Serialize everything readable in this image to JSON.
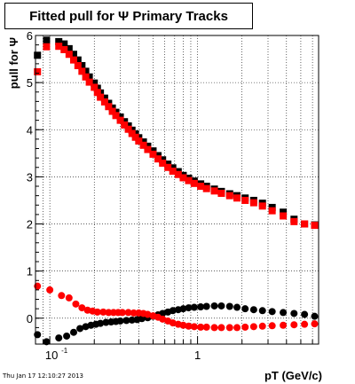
{
  "header": {
    "title": "Fitted pull for Ψ  Primary Tracks"
  },
  "footer": {
    "timestamp": "Thu Jan 17 12:10:27 2013"
  },
  "chart_data": {
    "type": "scatter",
    "title": "Fitted pull for Ψ  Primary Tracks",
    "xlabel": "pT (GeV/c)",
    "ylabel": "pull for Ψ",
    "xscale": "log",
    "xlim": [
      0.08,
      6.6
    ],
    "ylim": [
      -0.55,
      6.0
    ],
    "grid": true,
    "yticks": [
      0,
      1,
      2,
      3,
      4,
      5,
      6
    ],
    "xticks": [
      {
        "value": 0.1,
        "label": "10",
        "exp": "-1"
      },
      {
        "value": 1,
        "label": "1",
        "exp": ""
      }
    ],
    "colors": {
      "black": "#000000",
      "red": "#ff0000"
    },
    "series": [
      {
        "color": "#000000",
        "points": [
          [
            0.0825,
            5.58
          ],
          [
            0.095,
            5.9
          ],
          [
            0.115,
            5.87
          ],
          [
            0.125,
            5.82
          ],
          [
            0.135,
            5.72
          ],
          [
            0.145,
            5.6
          ],
          [
            0.155,
            5.48
          ],
          [
            0.165,
            5.36
          ],
          [
            0.175,
            5.24
          ],
          [
            0.185,
            5.12
          ],
          [
            0.2,
            4.99
          ],
          [
            0.21,
            4.88
          ],
          [
            0.22,
            4.78
          ],
          [
            0.235,
            4.67
          ],
          [
            0.25,
            4.56
          ],
          [
            0.265,
            4.46
          ],
          [
            0.28,
            4.37
          ],
          [
            0.3,
            4.27
          ],
          [
            0.32,
            4.17
          ],
          [
            0.34,
            4.08
          ],
          [
            0.36,
            3.99
          ],
          [
            0.38,
            3.91
          ],
          [
            0.4,
            3.83
          ],
          [
            0.43,
            3.74
          ],
          [
            0.46,
            3.65
          ],
          [
            0.5,
            3.55
          ],
          [
            0.54,
            3.45
          ],
          [
            0.58,
            3.36
          ],
          [
            0.63,
            3.27
          ],
          [
            0.68,
            3.19
          ],
          [
            0.74,
            3.11
          ],
          [
            0.8,
            3.03
          ],
          [
            0.87,
            2.97
          ],
          [
            0.95,
            2.91
          ],
          [
            1.05,
            2.85
          ],
          [
            1.15,
            2.8
          ],
          [
            1.3,
            2.74
          ],
          [
            1.45,
            2.69
          ],
          [
            1.65,
            2.64
          ],
          [
            1.85,
            2.6
          ],
          [
            2.1,
            2.55
          ],
          [
            2.4,
            2.5
          ],
          [
            2.75,
            2.44
          ],
          [
            3.2,
            2.35
          ],
          [
            3.8,
            2.25
          ],
          [
            4.5,
            2.1
          ],
          [
            5.3,
            2.0
          ],
          [
            6.2,
            1.98
          ]
        ]
      },
      {
        "color": "#ff0000",
        "points": [
          [
            0.0825,
            5.23
          ],
          [
            0.095,
            5.76
          ],
          [
            0.115,
            5.77
          ],
          [
            0.125,
            5.7
          ],
          [
            0.135,
            5.6
          ],
          [
            0.145,
            5.48
          ],
          [
            0.155,
            5.36
          ],
          [
            0.165,
            5.24
          ],
          [
            0.175,
            5.12
          ],
          [
            0.185,
            5.01
          ],
          [
            0.2,
            4.9
          ],
          [
            0.21,
            4.79
          ],
          [
            0.22,
            4.69
          ],
          [
            0.235,
            4.59
          ],
          [
            0.25,
            4.49
          ],
          [
            0.265,
            4.39
          ],
          [
            0.28,
            4.3
          ],
          [
            0.3,
            4.2
          ],
          [
            0.32,
            4.1
          ],
          [
            0.34,
            4.01
          ],
          [
            0.36,
            3.92
          ],
          [
            0.38,
            3.84
          ],
          [
            0.4,
            3.76
          ],
          [
            0.43,
            3.67
          ],
          [
            0.46,
            3.58
          ],
          [
            0.5,
            3.48
          ],
          [
            0.54,
            3.38
          ],
          [
            0.58,
            3.29
          ],
          [
            0.63,
            3.2
          ],
          [
            0.68,
            3.12
          ],
          [
            0.74,
            3.05
          ],
          [
            0.8,
            2.98
          ],
          [
            0.87,
            2.92
          ],
          [
            0.95,
            2.86
          ],
          [
            1.05,
            2.8
          ],
          [
            1.15,
            2.75
          ],
          [
            1.3,
            2.7
          ],
          [
            1.45,
            2.65
          ],
          [
            1.65,
            2.6
          ],
          [
            1.85,
            2.55
          ],
          [
            2.1,
            2.5
          ],
          [
            2.4,
            2.45
          ],
          [
            2.75,
            2.38
          ],
          [
            3.2,
            2.28
          ],
          [
            3.8,
            2.17
          ],
          [
            4.5,
            2.05
          ],
          [
            5.3,
            2.0
          ],
          [
            6.2,
            1.97
          ]
        ]
      },
      {
        "color": "#000000",
        "points": [
          [
            0.0825,
            -0.35
          ],
          [
            0.095,
            -0.5
          ],
          [
            0.115,
            -0.42
          ],
          [
            0.13,
            -0.38
          ],
          [
            0.145,
            -0.3
          ],
          [
            0.16,
            -0.22
          ],
          [
            0.175,
            -0.18
          ],
          [
            0.19,
            -0.15
          ],
          [
            0.205,
            -0.13
          ],
          [
            0.22,
            -0.11
          ],
          [
            0.24,
            -0.09
          ],
          [
            0.26,
            -0.08
          ],
          [
            0.28,
            -0.07
          ],
          [
            0.3,
            -0.06
          ],
          [
            0.33,
            -0.05
          ],
          [
            0.36,
            -0.04
          ],
          [
            0.39,
            -0.03
          ],
          [
            0.42,
            -0.01
          ],
          [
            0.46,
            0.01
          ],
          [
            0.5,
            0.04
          ],
          [
            0.54,
            0.07
          ],
          [
            0.58,
            0.1
          ],
          [
            0.63,
            0.13
          ],
          [
            0.68,
            0.16
          ],
          [
            0.74,
            0.18
          ],
          [
            0.8,
            0.2
          ],
          [
            0.87,
            0.22
          ],
          [
            0.95,
            0.23
          ],
          [
            1.05,
            0.24
          ],
          [
            1.15,
            0.25
          ],
          [
            1.3,
            0.26
          ],
          [
            1.45,
            0.26
          ],
          [
            1.65,
            0.25
          ],
          [
            1.85,
            0.23
          ],
          [
            2.1,
            0.2
          ],
          [
            2.4,
            0.18
          ],
          [
            2.75,
            0.16
          ],
          [
            3.2,
            0.14
          ],
          [
            3.8,
            0.12
          ],
          [
            4.5,
            0.1
          ],
          [
            5.3,
            0.08
          ],
          [
            6.2,
            0.04
          ]
        ]
      },
      {
        "color": "#ff0000",
        "points": [
          [
            0.0825,
            0.68
          ],
          [
            0.1,
            0.6
          ],
          [
            0.12,
            0.48
          ],
          [
            0.135,
            0.43
          ],
          [
            0.15,
            0.3
          ],
          [
            0.165,
            0.22
          ],
          [
            0.18,
            0.17
          ],
          [
            0.195,
            0.15
          ],
          [
            0.21,
            0.13
          ],
          [
            0.23,
            0.13
          ],
          [
            0.25,
            0.12
          ],
          [
            0.27,
            0.12
          ],
          [
            0.29,
            0.12
          ],
          [
            0.31,
            0.12
          ],
          [
            0.34,
            0.12
          ],
          [
            0.37,
            0.11
          ],
          [
            0.4,
            0.11
          ],
          [
            0.43,
            0.1
          ],
          [
            0.46,
            0.08
          ],
          [
            0.5,
            0.05
          ],
          [
            0.54,
            0.02
          ],
          [
            0.58,
            -0.02
          ],
          [
            0.63,
            -0.06
          ],
          [
            0.68,
            -0.1
          ],
          [
            0.74,
            -0.13
          ],
          [
            0.8,
            -0.15
          ],
          [
            0.87,
            -0.17
          ],
          [
            0.95,
            -0.18
          ],
          [
            1.05,
            -0.19
          ],
          [
            1.15,
            -0.19
          ],
          [
            1.3,
            -0.2
          ],
          [
            1.45,
            -0.2
          ],
          [
            1.65,
            -0.2
          ],
          [
            1.85,
            -0.2
          ],
          [
            2.1,
            -0.19
          ],
          [
            2.4,
            -0.18
          ],
          [
            2.75,
            -0.17
          ],
          [
            3.2,
            -0.16
          ],
          [
            3.8,
            -0.15
          ],
          [
            4.5,
            -0.14
          ],
          [
            5.3,
            -0.13
          ],
          [
            6.2,
            -0.12
          ]
        ]
      }
    ]
  }
}
